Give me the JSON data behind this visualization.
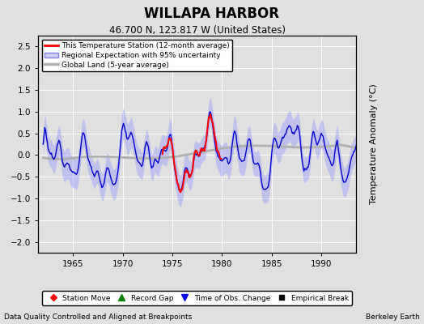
{
  "title": "WILLAPA HARBOR",
  "subtitle": "46.700 N, 123.817 W (United States)",
  "ylabel": "Temperature Anomaly (°C)",
  "xlabel_note": "Data Quality Controlled and Aligned at Breakpoints",
  "credit": "Berkeley Earth",
  "xlim": [
    1961.5,
    1993.5
  ],
  "ylim": [
    -2.25,
    2.75
  ],
  "yticks": [
    -2,
    -1.5,
    -1,
    -0.5,
    0,
    0.5,
    1,
    1.5,
    2,
    2.5
  ],
  "xticks": [
    1965,
    1970,
    1975,
    1980,
    1985,
    1990
  ],
  "bg_color": "#e0e0e0",
  "plot_bg_color": "#e0e0e0",
  "uncertainty_color": "#9999ff",
  "uncertainty_alpha": 0.45,
  "regional_color": "#0000cc",
  "regional_lw": 1.0,
  "station_color": "red",
  "station_lw": 1.5,
  "global_color": "#b0b0b0",
  "global_lw": 2.0,
  "grid_color": "white",
  "grid_lw": 0.7,
  "legend_items": [
    {
      "label": "This Temperature Station (12-month average)",
      "color": "red",
      "lw": 2
    },
    {
      "label": "Regional Expectation with 95% uncertainty",
      "color": "#0000cc",
      "lw": 1.5
    },
    {
      "label": "Global Land (5-year average)",
      "color": "#b0b0b0",
      "lw": 2.5
    }
  ],
  "marker_legend": [
    {
      "marker": "D",
      "color": "red",
      "label": "Station Move"
    },
    {
      "marker": "^",
      "color": "green",
      "label": "Record Gap"
    },
    {
      "marker": "v",
      "color": "blue",
      "label": "Time of Obs. Change"
    },
    {
      "marker": "s",
      "color": "black",
      "label": "Empirical Break"
    }
  ]
}
